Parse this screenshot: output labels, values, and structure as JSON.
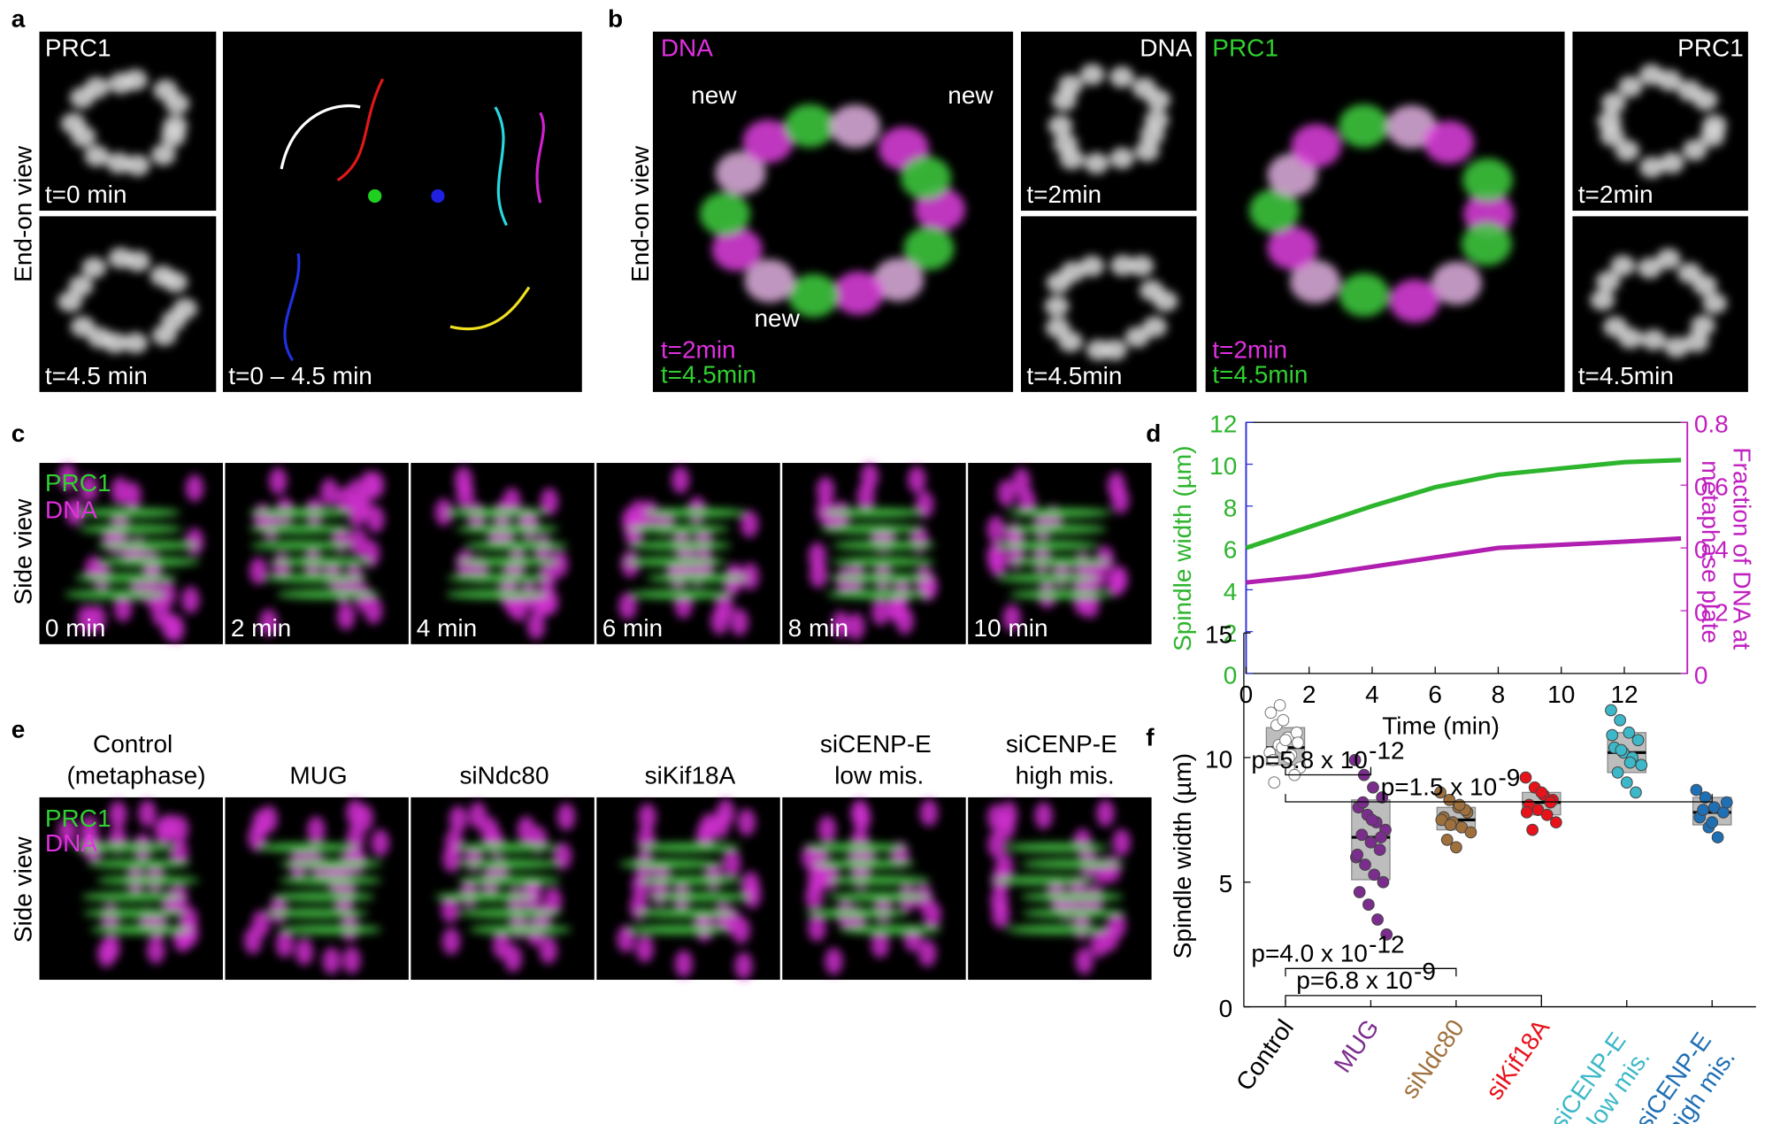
{
  "panels": {
    "a": {
      "label": "a",
      "view": "End-on view",
      "channel": "PRC1",
      "times": [
        "t=0 min",
        "t=4.5 min"
      ],
      "track_time": "t=0 – 4.5 min"
    },
    "b": {
      "label": "b",
      "view": "End-on view",
      "merge_dna": {
        "title": "DNA",
        "new": [
          "new",
          "new",
          "new"
        ],
        "t1": "t=2min",
        "t2": "t=4.5min"
      },
      "dna": {
        "title": "DNA",
        "t1": "t=2min",
        "t2": "t=4.5min"
      },
      "merge_prc1": {
        "title": "PRC1",
        "t1": "t=2min",
        "t2": "t=4.5min"
      },
      "prc1": {
        "title": "PRC1",
        "t1": "t=2min",
        "t2": "t=4.5min"
      }
    },
    "c": {
      "label": "c",
      "view": "Side view",
      "channels": [
        "PRC1",
        "DNA"
      ],
      "times": [
        "0 min",
        "2 min",
        "4 min",
        "6 min",
        "8 min",
        "10 min"
      ]
    },
    "e": {
      "label": "e",
      "view": "Side view",
      "channels": [
        "PRC1",
        "DNA"
      ],
      "conditions": [
        "Control (metaphase)",
        "MUG",
        "siNdc80",
        "siKif18A",
        "siCENP-E low mis.",
        "siCENP-E high mis."
      ]
    }
  },
  "chart_data": [
    {
      "type": "line",
      "label": "d",
      "x_label": "Time (min)",
      "y_label": "Spindle width (µm)",
      "y2_label": "Fraction of DNA at metaphase plate",
      "x": [
        0,
        2,
        4,
        6,
        8,
        10,
        12,
        13.8
      ],
      "series": [
        {
          "color": "#2db52d",
          "values": [
            6.0,
            7.0,
            8.0,
            8.9,
            9.5,
            9.8,
            10.1,
            10.2
          ]
        },
        {
          "color": "#b01fb0",
          "axis": "y2",
          "values": [
            0.29,
            0.31,
            0.34,
            0.37,
            0.4,
            0.41,
            0.42,
            0.43
          ]
        }
      ],
      "xlim": [
        0,
        14
      ],
      "xticks": [
        0,
        2,
        4,
        6,
        8,
        10,
        12
      ],
      "ylim": [
        0,
        12
      ],
      "yticks": [
        0,
        2,
        4,
        6,
        8,
        10,
        12
      ],
      "y2lim": [
        0,
        0.8
      ],
      "y2ticks": [
        0,
        0.2,
        0.4,
        0.6,
        0.8
      ]
    },
    {
      "type": "box",
      "label": "f",
      "y_label": "Spindle width (µm)",
      "categories": [
        "Control",
        "MUG",
        "siNdc80",
        "siKif18A",
        "siCENP-E low mis.",
        "siCENP-E high mis."
      ],
      "colors": [
        "#000000",
        "#7b2d8e",
        "#a0703c",
        "#e8121b",
        "#3cb8c8",
        "#1f6fb5"
      ],
      "point_colors": [
        "#ffffff",
        "#7b2d8e",
        "#a0703c",
        "#e8121b",
        "#3cb8c8",
        "#1f6fb5"
      ],
      "medians": [
        10.4,
        6.8,
        7.5,
        8.2,
        10.2,
        7.8
      ],
      "q1": [
        9.7,
        5.1,
        7.1,
        7.7,
        9.4,
        7.3
      ],
      "q3": [
        11.2,
        8.3,
        8.0,
        8.6,
        11.0,
        8.4
      ],
      "points": [
        [
          10.2,
          10.5,
          10.8,
          11.0,
          9.9,
          10.4,
          10.1,
          9.6,
          11.3,
          10.7,
          9.3,
          11.8,
          12.1,
          10.0,
          10.6,
          9.0,
          11.5
        ],
        [
          9.9,
          9.3,
          8.8,
          8.4,
          8.0,
          7.7,
          7.4,
          7.1,
          6.9,
          6.6,
          6.3,
          6.0,
          5.7,
          5.3,
          5.0,
          4.6,
          4.1,
          3.5,
          2.9,
          8.2,
          7.5,
          6.8,
          6.1
        ],
        [
          8.6,
          8.3,
          8.0,
          7.8,
          7.6,
          7.4,
          7.2,
          7.0,
          6.7,
          6.4,
          7.9,
          7.5,
          7.3,
          8.1
        ],
        [
          9.2,
          8.8,
          8.5,
          8.3,
          8.1,
          7.9,
          7.7,
          7.4,
          7.1,
          8.6,
          8.2,
          7.8
        ],
        [
          11.9,
          11.5,
          11.0,
          10.7,
          10.4,
          10.2,
          10.0,
          9.7,
          9.4,
          9.0,
          8.6,
          10.9,
          10.3,
          9.8
        ],
        [
          8.7,
          8.4,
          8.0,
          7.8,
          7.6,
          7.2,
          6.8,
          8.2,
          7.9,
          7.4
        ]
      ],
      "ylim": [
        0,
        15
      ],
      "yticks": [
        0,
        5,
        10,
        15
      ],
      "annotations": [
        {
          "text": "p=5.8 x 10",
          "exponent": "-12"
        },
        {
          "text": "p=1.5 x 10",
          "exponent": "-9"
        },
        {
          "text": "p=4.0 x 10",
          "exponent": "-12"
        },
        {
          "text": "p=6.8 x 10",
          "exponent": "-9"
        }
      ]
    }
  ]
}
